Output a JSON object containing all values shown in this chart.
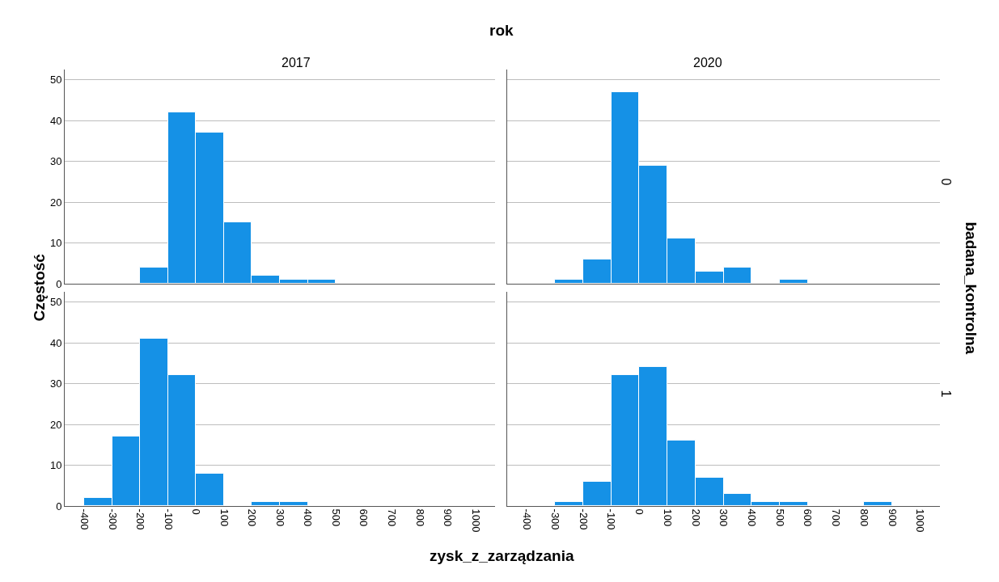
{
  "chart_data": [
    {
      "type": "histogram",
      "title": "2017",
      "annotations": [
        "rok"
      ],
      "bins": [
        -400,
        -300,
        -200,
        -100,
        0,
        100,
        200,
        300,
        400,
        500,
        600,
        700,
        800,
        900
      ],
      "values": [
        0,
        0,
        4,
        42,
        37,
        15,
        2,
        1,
        1,
        0,
        0,
        0,
        0
      ],
      "color": "#1591e6",
      "xlim": [
        -470,
        1070
      ],
      "ylim": [
        0,
        52.5
      ],
      "xticks": [
        -400,
        -300,
        -200,
        -100,
        0,
        100,
        200,
        300,
        400,
        500,
        600,
        700,
        800,
        900,
        1000
      ],
      "yticks": [
        0,
        10,
        20,
        30,
        40,
        50
      ],
      "grid": "y",
      "tick_labels": "y"
    },
    {
      "type": "histogram",
      "title": "2020",
      "y2label": "0",
      "annotations": [
        "badana_kontrolna"
      ],
      "bins": [
        -400,
        -300,
        -200,
        -100,
        0,
        100,
        200,
        300,
        400,
        500,
        600,
        700,
        800,
        900
      ],
      "values": [
        0,
        1,
        6,
        47,
        29,
        11,
        3,
        4,
        0,
        1,
        0,
        0,
        0
      ],
      "color": "#1591e6",
      "xlim": [
        -470,
        1070
      ],
      "ylim": [
        0,
        52.5
      ],
      "xticks": [
        -400,
        -300,
        -200,
        -100,
        0,
        100,
        200,
        300,
        400,
        500,
        600,
        700,
        800,
        900,
        1000
      ],
      "yticks": [
        0,
        10,
        20,
        30,
        40,
        50
      ],
      "grid": "y",
      "tick_labels": false
    },
    {
      "type": "histogram",
      "xlabel": "zysk_z_zarządzania",
      "ylabel": "Częstość",
      "bins": [
        -400,
        -300,
        -200,
        -100,
        0,
        100,
        200,
        300,
        400,
        500,
        600,
        700,
        800,
        900
      ],
      "values": [
        2,
        17,
        41,
        32,
        8,
        0,
        1,
        1,
        0,
        0,
        0,
        0,
        0
      ],
      "color": "#1591e6",
      "xlim": [
        -470,
        1070
      ],
      "ylim": [
        0,
        52.5
      ],
      "xticks": [
        -400,
        -300,
        -200,
        -100,
        0,
        100,
        200,
        300,
        400,
        500,
        600,
        700,
        800,
        900,
        1000
      ],
      "yticks": [
        0,
        10,
        20,
        30,
        40,
        50
      ],
      "grid": "y"
    },
    {
      "type": "histogram",
      "y2label": "1",
      "bins": [
        -400,
        -300,
        -200,
        -100,
        0,
        100,
        200,
        300,
        400,
        500,
        600,
        700,
        800,
        900
      ],
      "values": [
        0,
        1,
        6,
        32,
        34,
        16,
        7,
        3,
        1,
        1,
        0,
        0,
        1
      ],
      "color": "#1591e6",
      "xlim": [
        -470,
        1070
      ],
      "ylim": [
        0,
        52.5
      ],
      "xticks": [
        -400,
        -300,
        -200,
        -100,
        0,
        100,
        200,
        300,
        400,
        500,
        600,
        700,
        800,
        900,
        1000
      ],
      "yticks": [
        0,
        10,
        20,
        30,
        40,
        50
      ],
      "grid": "y",
      "tick_labels": "x"
    }
  ]
}
